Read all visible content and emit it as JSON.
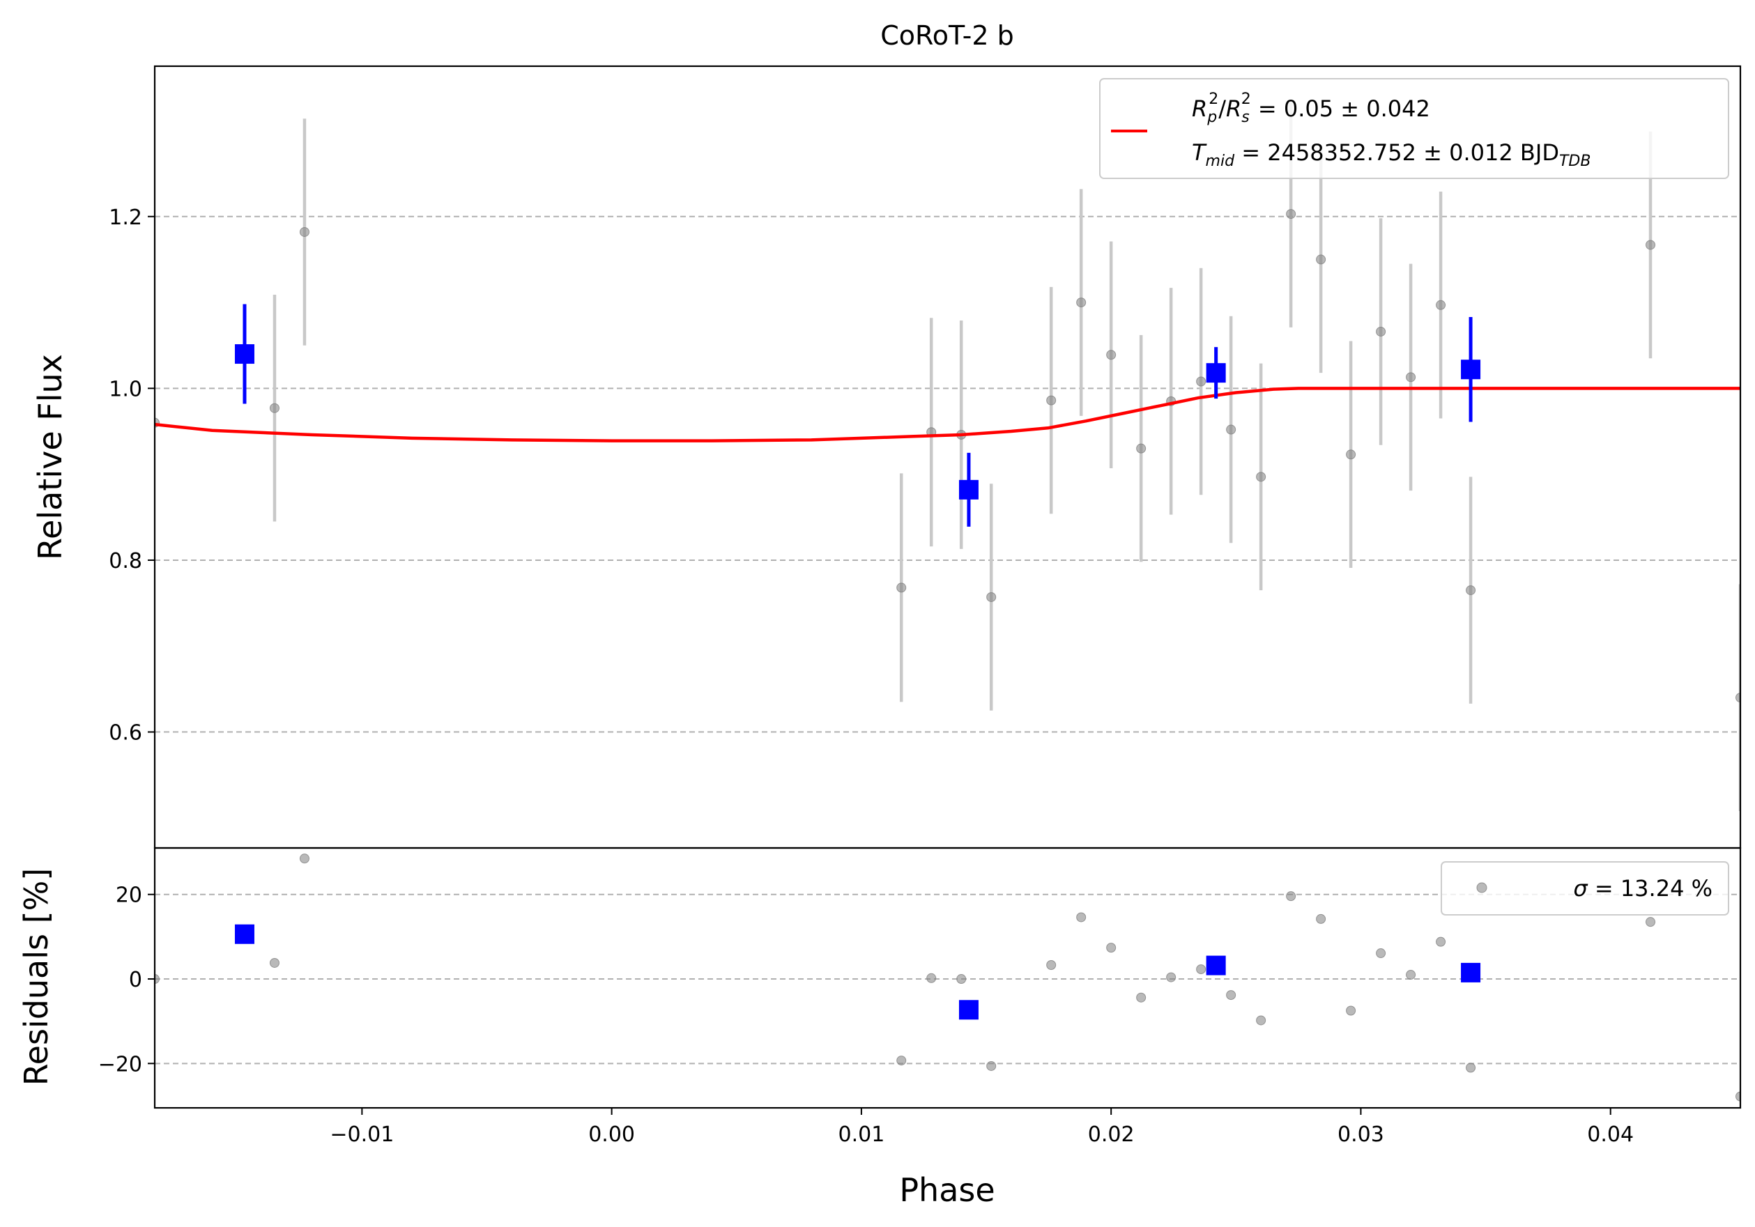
{
  "chart_data": {
    "type": "scatter",
    "title": "CoRoT-2 b",
    "xlabel": "Phase",
    "xlim": [
      -0.0183,
      0.0452
    ],
    "x_ticks": [
      {
        "value": -0.01,
        "label": "−0.01"
      },
      {
        "value": 0.0,
        "label": "0.00"
      },
      {
        "value": 0.01,
        "label": "0.01"
      },
      {
        "value": 0.02,
        "label": "0.02"
      },
      {
        "value": 0.03,
        "label": "0.03"
      },
      {
        "value": 0.04,
        "label": "0.04"
      }
    ],
    "colors": {
      "model": "#ff0000",
      "binned": "#0000ff",
      "raw": "#808080",
      "error_raw": "#c8c8c8",
      "grid": "#b0b0b0"
    },
    "panels": [
      {
        "id": "flux",
        "ylabel": "Relative Flux",
        "ylim": [
          0.465,
          1.375
        ],
        "y_ticks": [
          {
            "value": 0.6,
            "label": "0.6"
          },
          {
            "value": 0.8,
            "label": "0.8"
          },
          {
            "value": 1.0,
            "label": "1.0"
          },
          {
            "value": 1.2,
            "label": "1.2"
          }
        ],
        "grid": true,
        "legend": {
          "location": "top-right",
          "entries": [
            {
              "series": "model",
              "line1": {
                "lhs": "R",
                "sub1": "p",
                "sup1": "2",
                "slash": "/",
                "rhs": "R",
                "sub2": "s",
                "sup2": "2",
                "value": " = 0.05 ± 0.042"
              },
              "line2": {
                "lhs": "T",
                "sub": "mid",
                "value": " = 2458352.752 ± 0.012 BJD",
                "unit_sub": "TDB"
              }
            }
          ]
        },
        "raw": [
          {
            "x": -0.0183,
            "y": 0.96,
            "err": 0.0
          },
          {
            "x": -0.0135,
            "y": 0.977,
            "err": 0.132
          },
          {
            "x": -0.0123,
            "y": 1.182,
            "err": 0.132
          },
          {
            "x": 0.0116,
            "y": 0.768,
            "err": 0.133
          },
          {
            "x": 0.0128,
            "y": 0.949,
            "err": 0.133
          },
          {
            "x": 0.014,
            "y": 0.946,
            "err": 0.133
          },
          {
            "x": 0.0152,
            "y": 0.757,
            "err": 0.132
          },
          {
            "x": 0.0176,
            "y": 0.986,
            "err": 0.132
          },
          {
            "x": 0.0188,
            "y": 1.1,
            "err": 0.132
          },
          {
            "x": 0.02,
            "y": 1.039,
            "err": 0.132
          },
          {
            "x": 0.0212,
            "y": 0.93,
            "err": 0.132
          },
          {
            "x": 0.0224,
            "y": 0.985,
            "err": 0.132
          },
          {
            "x": 0.0236,
            "y": 1.008,
            "err": 0.132
          },
          {
            "x": 0.0248,
            "y": 0.952,
            "err": 0.132
          },
          {
            "x": 0.026,
            "y": 0.897,
            "err": 0.132
          },
          {
            "x": 0.0272,
            "y": 1.203,
            "err": 0.132
          },
          {
            "x": 0.0284,
            "y": 1.15,
            "err": 0.132
          },
          {
            "x": 0.0296,
            "y": 0.923,
            "err": 0.132
          },
          {
            "x": 0.0308,
            "y": 1.066,
            "err": 0.132
          },
          {
            "x": 0.032,
            "y": 1.013,
            "err": 0.132
          },
          {
            "x": 0.0332,
            "y": 1.097,
            "err": 0.132
          },
          {
            "x": 0.0344,
            "y": 0.765,
            "err": 0.132
          },
          {
            "x": 0.0416,
            "y": 1.167,
            "err": 0.132
          },
          {
            "x": 0.0452,
            "y": 0.64,
            "err": 0.132
          }
        ],
        "binned": [
          {
            "x": -0.0147,
            "y": 1.04,
            "err": 0.058
          },
          {
            "x": 0.0143,
            "y": 0.882,
            "err": 0.043
          },
          {
            "x": 0.0242,
            "y": 1.018,
            "err": 0.03
          },
          {
            "x": 0.0344,
            "y": 1.022,
            "err": 0.061
          }
        ],
        "model": {
          "x": [
            -0.0183,
            -0.016,
            -0.012,
            -0.008,
            -0.004,
            0.0,
            0.004,
            0.008,
            0.01,
            0.012,
            0.014,
            0.016,
            0.0175,
            0.019,
            0.0205,
            0.022,
            0.0235,
            0.025,
            0.0265,
            0.0275,
            0.028,
            0.029,
            0.035,
            0.04,
            0.0452
          ],
          "y": [
            0.958,
            0.951,
            0.946,
            0.942,
            0.94,
            0.939,
            0.939,
            0.94,
            0.942,
            0.944,
            0.946,
            0.95,
            0.954,
            0.962,
            0.971,
            0.98,
            0.989,
            0.995,
            0.999,
            1.0,
            1.0,
            1.0,
            1.0,
            1.0,
            1.0
          ]
        }
      },
      {
        "id": "residuals",
        "ylabel": "Residuals [%]",
        "ylim": [
          -30.5,
          31.0
        ],
        "y_ticks": [
          {
            "value": -20,
            "label": "−20"
          },
          {
            "value": 0,
            "label": "0"
          },
          {
            "value": 20,
            "label": "20"
          }
        ],
        "grid": true,
        "legend": {
          "location": "top-right",
          "entries": [
            {
              "series": "raw",
              "lhs": "σ",
              "value": " = 13.24 %"
            }
          ]
        },
        "raw": [
          {
            "x": -0.0183,
            "y": 0.0
          },
          {
            "x": -0.0135,
            "y": 3.8
          },
          {
            "x": -0.0123,
            "y": 28.5
          },
          {
            "x": 0.0116,
            "y": -19.3
          },
          {
            "x": 0.0128,
            "y": 0.2
          },
          {
            "x": 0.014,
            "y": 0.0
          },
          {
            "x": 0.0152,
            "y": -20.6
          },
          {
            "x": 0.0176,
            "y": 3.3
          },
          {
            "x": 0.0188,
            "y": 14.6
          },
          {
            "x": 0.02,
            "y": 7.4
          },
          {
            "x": 0.0212,
            "y": -4.4
          },
          {
            "x": 0.0224,
            "y": 0.4
          },
          {
            "x": 0.0236,
            "y": 2.3
          },
          {
            "x": 0.0248,
            "y": -3.8
          },
          {
            "x": 0.026,
            "y": -9.8
          },
          {
            "x": 0.0272,
            "y": 19.6
          },
          {
            "x": 0.0284,
            "y": 14.2
          },
          {
            "x": 0.0296,
            "y": -7.5
          },
          {
            "x": 0.0308,
            "y": 6.1
          },
          {
            "x": 0.032,
            "y": 1.0
          },
          {
            "x": 0.0332,
            "y": 8.8
          },
          {
            "x": 0.0344,
            "y": -21.0
          },
          {
            "x": 0.0416,
            "y": 13.5
          },
          {
            "x": 0.0452,
            "y": -27.8
          }
        ],
        "binned": [
          {
            "x": -0.0147,
            "y": 10.6
          },
          {
            "x": 0.0143,
            "y": -7.3
          },
          {
            "x": 0.0242,
            "y": 3.2
          },
          {
            "x": 0.0344,
            "y": 1.5
          }
        ]
      }
    ]
  }
}
